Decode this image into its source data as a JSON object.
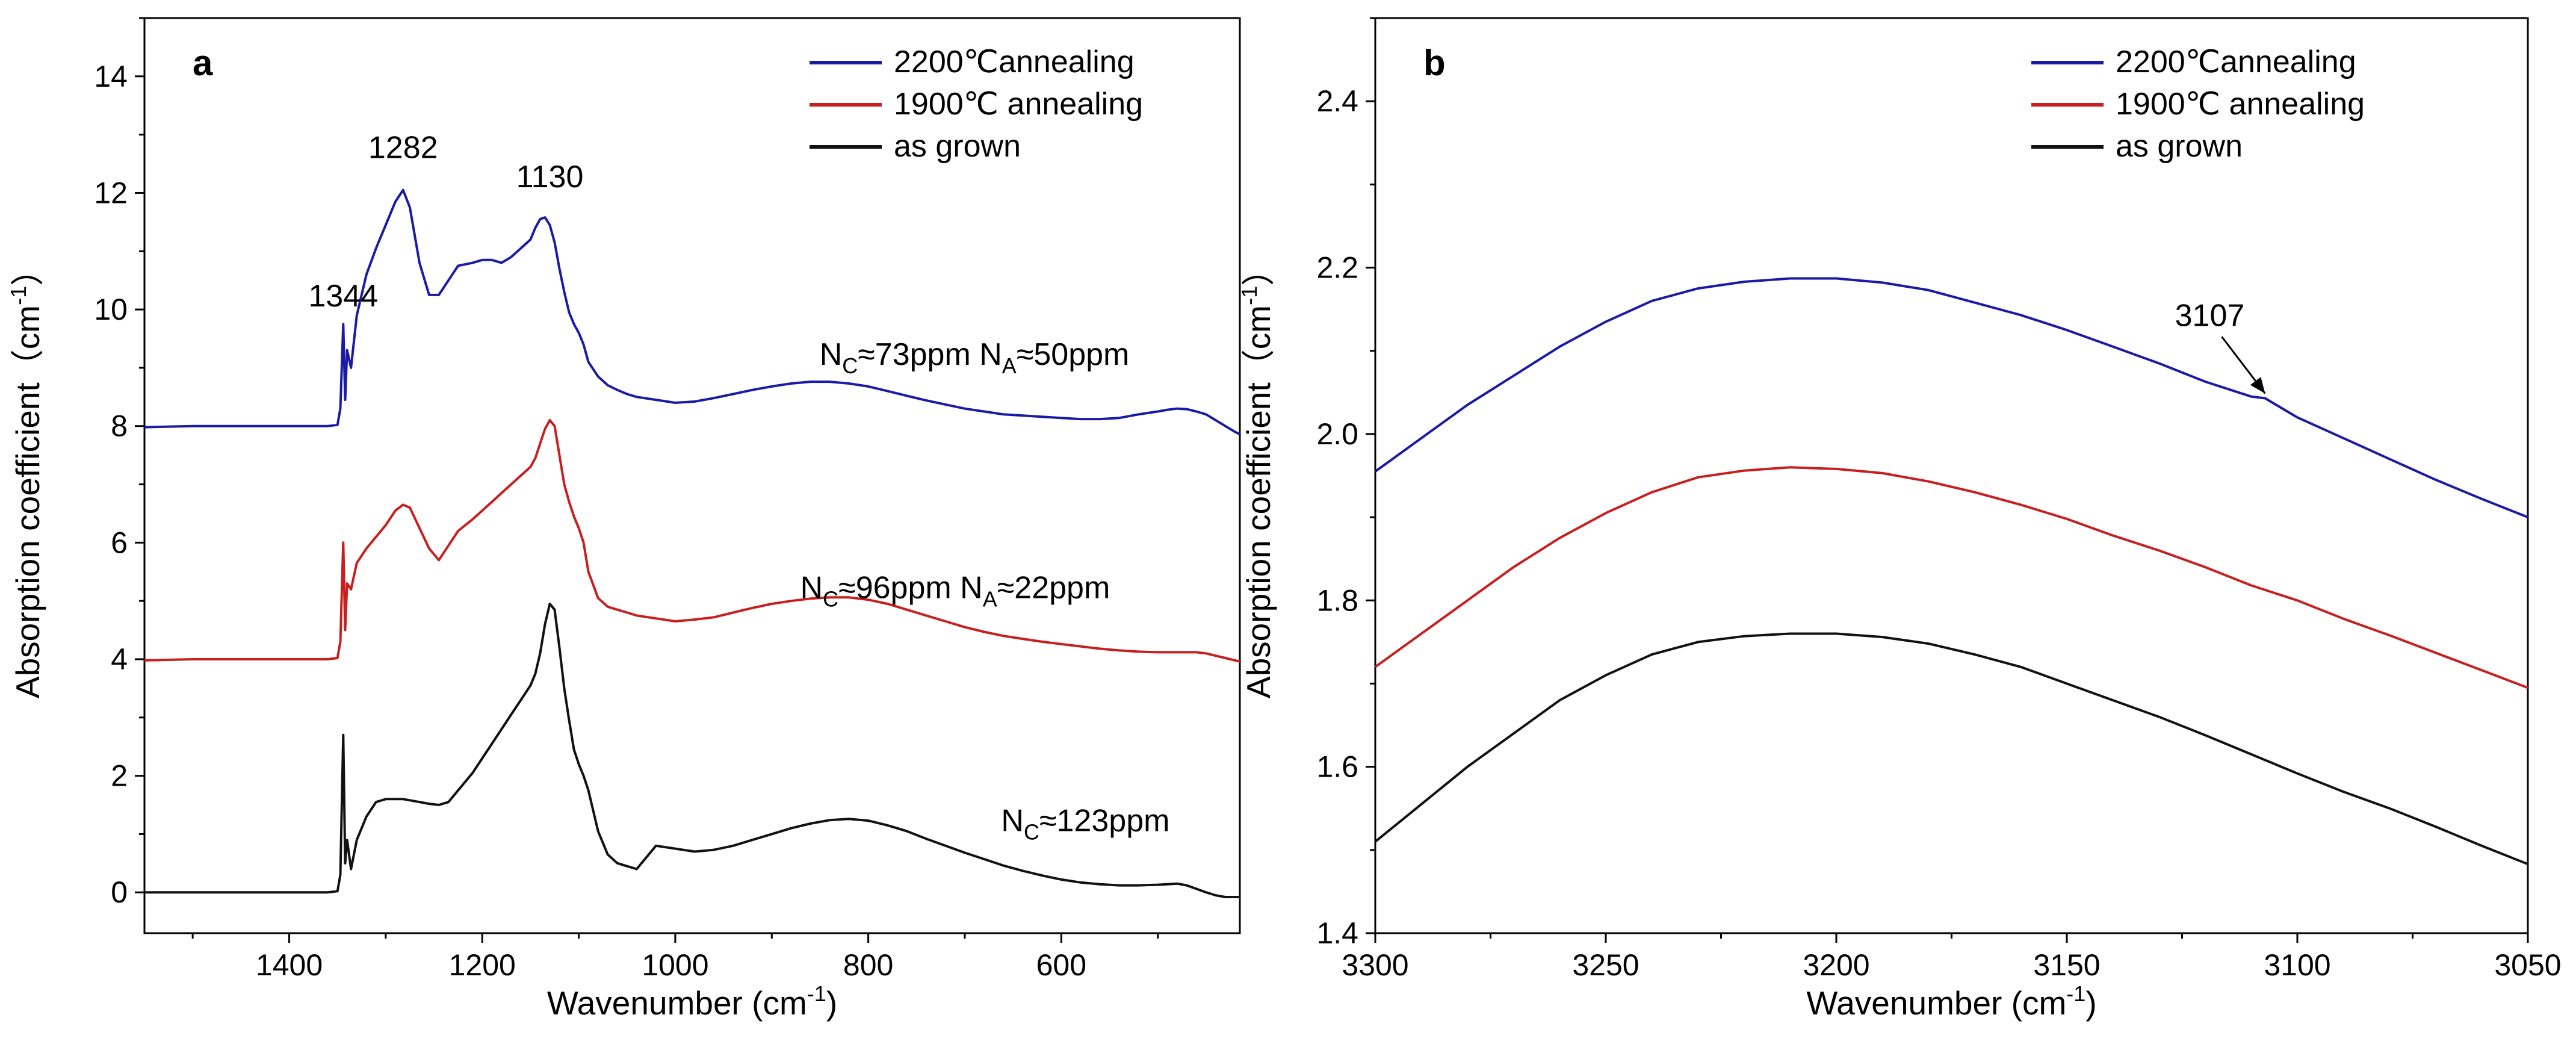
{
  "chart_data": [
    {
      "type": "line",
      "panel_label": "a",
      "xlabel": "Wavenumber (cm",
      "xlabel_sup": "-1",
      "xlabel_tail": ")",
      "ylabel": "Absorption coefficient（cm",
      "ylabel_sup": "-1",
      "ylabel_tail": "）",
      "xlim": [
        1550,
        415
      ],
      "ylim": [
        -0.7,
        15
      ],
      "xticks": [
        "1400",
        "1200",
        "1000",
        "800",
        "600"
      ],
      "xtick_values": [
        1400,
        1200,
        1000,
        800,
        600
      ],
      "yticks": [
        "0",
        "2",
        "4",
        "6",
        "8",
        "10",
        "12",
        "14"
      ],
      "ytick_values": [
        0,
        2,
        4,
        6,
        8,
        10,
        12,
        14
      ],
      "legend_position": "top-right",
      "series": [
        {
          "name": "2200℃annealing",
          "color": "#1a1aa6",
          "x": [
            1550,
            1500,
            1450,
            1400,
            1360,
            1350,
            1347,
            1344,
            1342,
            1340,
            1336,
            1330,
            1320,
            1310,
            1300,
            1290,
            1282,
            1275,
            1265,
            1255,
            1245,
            1235,
            1225,
            1210,
            1200,
            1190,
            1180,
            1170,
            1160,
            1150,
            1145,
            1140,
            1135,
            1130,
            1125,
            1120,
            1115,
            1110,
            1105,
            1100,
            1095,
            1090,
            1080,
            1070,
            1060,
            1050,
            1040,
            1020,
            1000,
            980,
            960,
            940,
            920,
            900,
            880,
            860,
            840,
            820,
            800,
            780,
            760,
            740,
            720,
            700,
            680,
            660,
            640,
            620,
            600,
            580,
            560,
            540,
            520,
            500,
            490,
            480,
            470,
            460,
            450,
            440,
            430,
            420,
            415
          ],
          "y": [
            7.98,
            8.0,
            8.0,
            8.0,
            8.0,
            8.02,
            8.3,
            9.75,
            8.45,
            9.3,
            9.0,
            9.9,
            10.6,
            11.05,
            11.45,
            11.85,
            12.05,
            11.75,
            10.8,
            10.25,
            10.25,
            10.5,
            10.75,
            10.8,
            10.85,
            10.85,
            10.8,
            10.9,
            11.05,
            11.2,
            11.4,
            11.55,
            11.58,
            11.45,
            11.15,
            10.7,
            10.3,
            9.95,
            9.75,
            9.6,
            9.4,
            9.1,
            8.85,
            8.7,
            8.62,
            8.55,
            8.5,
            8.45,
            8.4,
            8.42,
            8.48,
            8.55,
            8.62,
            8.68,
            8.73,
            8.76,
            8.76,
            8.73,
            8.68,
            8.6,
            8.52,
            8.44,
            8.37,
            8.3,
            8.25,
            8.2,
            8.18,
            8.16,
            8.14,
            8.12,
            8.12,
            8.14,
            8.2,
            8.25,
            8.28,
            8.3,
            8.29,
            8.25,
            8.2,
            8.1,
            8.0,
            7.9,
            7.86
          ]
        },
        {
          "name": "1900℃ annealing",
          "color": "#c81e1e",
          "x": [
            1550,
            1500,
            1450,
            1400,
            1360,
            1350,
            1347,
            1344,
            1342,
            1340,
            1336,
            1330,
            1320,
            1310,
            1300,
            1290,
            1282,
            1275,
            1265,
            1255,
            1245,
            1235,
            1225,
            1210,
            1200,
            1190,
            1180,
            1170,
            1160,
            1150,
            1145,
            1140,
            1135,
            1130,
            1125,
            1120,
            1115,
            1110,
            1105,
            1100,
            1095,
            1090,
            1080,
            1070,
            1060,
            1050,
            1040,
            1020,
            1000,
            980,
            960,
            940,
            920,
            900,
            880,
            860,
            840,
            820,
            800,
            780,
            760,
            740,
            720,
            700,
            680,
            660,
            640,
            620,
            600,
            580,
            560,
            540,
            520,
            500,
            490,
            480,
            470,
            460,
            450,
            440,
            430,
            420,
            415
          ],
          "y": [
            3.98,
            4.0,
            4.0,
            4.0,
            4.0,
            4.02,
            4.3,
            6.0,
            4.5,
            5.3,
            5.2,
            5.65,
            5.9,
            6.1,
            6.3,
            6.55,
            6.65,
            6.6,
            6.25,
            5.9,
            5.7,
            5.95,
            6.2,
            6.4,
            6.55,
            6.7,
            6.85,
            7.0,
            7.15,
            7.3,
            7.45,
            7.7,
            7.95,
            8.1,
            8.0,
            7.5,
            7.0,
            6.7,
            6.45,
            6.25,
            6.0,
            5.5,
            5.05,
            4.9,
            4.85,
            4.8,
            4.75,
            4.7,
            4.65,
            4.68,
            4.72,
            4.8,
            4.88,
            4.95,
            5.0,
            5.04,
            5.06,
            5.06,
            5.02,
            4.95,
            4.85,
            4.75,
            4.65,
            4.55,
            4.47,
            4.4,
            4.35,
            4.3,
            4.26,
            4.22,
            4.18,
            4.15,
            4.13,
            4.12,
            4.12,
            4.12,
            4.12,
            4.12,
            4.1,
            4.06,
            4.02,
            3.98,
            3.96
          ]
        },
        {
          "name": "as grown",
          "color": "#111111",
          "x": [
            1550,
            1500,
            1450,
            1400,
            1360,
            1350,
            1347,
            1344,
            1342,
            1340,
            1336,
            1330,
            1320,
            1310,
            1300,
            1290,
            1282,
            1275,
            1265,
            1255,
            1245,
            1235,
            1225,
            1210,
            1200,
            1190,
            1180,
            1170,
            1160,
            1150,
            1145,
            1140,
            1135,
            1130,
            1125,
            1120,
            1115,
            1110,
            1105,
            1100,
            1095,
            1090,
            1080,
            1070,
            1060,
            1050,
            1040,
            1020,
            1000,
            980,
            960,
            940,
            920,
            900,
            880,
            860,
            840,
            820,
            800,
            780,
            760,
            740,
            720,
            700,
            680,
            660,
            640,
            620,
            600,
            580,
            560,
            540,
            520,
            500,
            490,
            480,
            470,
            460,
            450,
            440,
            430,
            420,
            415
          ],
          "y": [
            0.0,
            0.0,
            0.0,
            0.0,
            0.0,
            0.02,
            0.3,
            2.7,
            0.5,
            0.9,
            0.4,
            0.9,
            1.3,
            1.55,
            1.6,
            1.6,
            1.6,
            1.58,
            1.55,
            1.52,
            1.5,
            1.55,
            1.75,
            2.05,
            2.3,
            2.55,
            2.8,
            3.05,
            3.3,
            3.55,
            3.75,
            4.1,
            4.6,
            4.95,
            4.85,
            4.2,
            3.5,
            2.95,
            2.45,
            2.2,
            2.0,
            1.75,
            1.05,
            0.65,
            0.5,
            0.45,
            0.4,
            0.8,
            0.75,
            0.7,
            0.73,
            0.8,
            0.9,
            1.0,
            1.1,
            1.18,
            1.24,
            1.26,
            1.23,
            1.15,
            1.05,
            0.92,
            0.8,
            0.68,
            0.57,
            0.46,
            0.37,
            0.29,
            0.22,
            0.17,
            0.14,
            0.12,
            0.12,
            0.13,
            0.14,
            0.15,
            0.12,
            0.06,
            0.0,
            -0.05,
            -0.08,
            -0.08,
            -0.08
          ]
        }
      ],
      "annotations": [
        {
          "text": "1344",
          "x": 1344,
          "y": 10.05
        },
        {
          "text": "1282",
          "x": 1282,
          "y": 12.6
        },
        {
          "text": "1130",
          "x": 1130,
          "y": 12.1
        },
        {
          "main": "N",
          "sub": "C",
          "rest": "≈73ppm  N",
          "sub2": "A",
          "rest2": "≈50ppm",
          "x": 690,
          "y": 9.05
        },
        {
          "main": "N",
          "sub": "C",
          "rest": "≈96ppm  N",
          "sub2": "A",
          "rest2": "≈22ppm",
          "x": 710,
          "y": 5.05
        },
        {
          "main": "N",
          "sub": "C",
          "rest": "≈123ppm",
          "sub2": "",
          "rest2": "",
          "x": 575,
          "y": 1.05
        }
      ]
    },
    {
      "type": "line",
      "panel_label": "b",
      "xlabel": "Wavenumber (cm",
      "xlabel_sup": "-1",
      "xlabel_tail": ")",
      "ylabel": "Absorption coefficient（cm",
      "ylabel_sup": "-1",
      "ylabel_tail": "）",
      "xlim": [
        3300,
        3050
      ],
      "ylim": [
        1.4,
        2.5
      ],
      "xticks": [
        "3300",
        "3250",
        "3200",
        "3150",
        "3100",
        "3050"
      ],
      "xtick_values": [
        3300,
        3250,
        3200,
        3150,
        3100,
        3050
      ],
      "yticks": [
        "1.4",
        "1.6",
        "1.8",
        "2.0",
        "2.2",
        "2.4"
      ],
      "ytick_values": [
        1.4,
        1.6,
        1.8,
        2.0,
        2.2,
        2.4
      ],
      "legend_position": "top-right",
      "series": [
        {
          "name": "2200℃annealing",
          "color": "#1a1aa6",
          "x": [
            3300,
            3290,
            3280,
            3270,
            3260,
            3250,
            3240,
            3230,
            3220,
            3210,
            3200,
            3190,
            3180,
            3170,
            3160,
            3150,
            3140,
            3130,
            3120,
            3110,
            3107,
            3100,
            3090,
            3080,
            3070,
            3060,
            3050
          ],
          "y": [
            1.955,
            1.995,
            2.035,
            2.07,
            2.105,
            2.135,
            2.16,
            2.175,
            2.183,
            2.187,
            2.187,
            2.182,
            2.173,
            2.158,
            2.143,
            2.125,
            2.105,
            2.085,
            2.063,
            2.045,
            2.043,
            2.02,
            1.995,
            1.97,
            1.945,
            1.922,
            1.9
          ]
        },
        {
          "name": "1900℃ annealing",
          "color": "#c81e1e",
          "x": [
            3300,
            3290,
            3280,
            3270,
            3260,
            3250,
            3240,
            3230,
            3220,
            3210,
            3200,
            3190,
            3180,
            3170,
            3160,
            3150,
            3140,
            3130,
            3120,
            3110,
            3100,
            3090,
            3080,
            3070,
            3060,
            3050
          ],
          "y": [
            1.72,
            1.76,
            1.8,
            1.84,
            1.875,
            1.905,
            1.93,
            1.948,
            1.956,
            1.96,
            1.958,
            1.953,
            1.943,
            1.93,
            1.915,
            1.898,
            1.878,
            1.86,
            1.84,
            1.818,
            1.8,
            1.778,
            1.758,
            1.737,
            1.716,
            1.695
          ]
        },
        {
          "name": "as grown",
          "color": "#111111",
          "x": [
            3300,
            3290,
            3280,
            3270,
            3260,
            3250,
            3240,
            3230,
            3220,
            3210,
            3200,
            3190,
            3180,
            3170,
            3160,
            3150,
            3140,
            3130,
            3120,
            3110,
            3100,
            3090,
            3080,
            3070,
            3060,
            3050
          ],
          "y": [
            1.51,
            1.555,
            1.6,
            1.64,
            1.68,
            1.71,
            1.735,
            1.75,
            1.757,
            1.76,
            1.76,
            1.756,
            1.748,
            1.735,
            1.72,
            1.7,
            1.68,
            1.66,
            1.638,
            1.615,
            1.592,
            1.57,
            1.55,
            1.528,
            1.505,
            1.483
          ]
        }
      ],
      "annotations": [
        {
          "text": "3107",
          "x": 3119,
          "y": 2.13,
          "arrow_to": [
            3107,
            2.043
          ]
        }
      ]
    }
  ]
}
